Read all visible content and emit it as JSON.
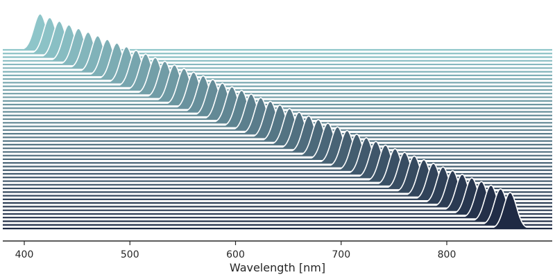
{
  "chart_data": {
    "type": "ridgeline",
    "title": "",
    "xlabel": "Wavelength [nm]",
    "ylabel": "",
    "xlim": [
      380,
      900
    ],
    "xticks": [
      400,
      500,
      600,
      700,
      800
    ],
    "xtick_labels": [
      "400",
      "500",
      "600",
      "700",
      "800"
    ],
    "grid": false,
    "legend": "none",
    "series_count": 50,
    "peak_start_nm": 415,
    "peak_end_nm": 860,
    "peak_width_nm": 6,
    "color_start": "#8ec5c9",
    "color_end": "#1f2a44"
  }
}
